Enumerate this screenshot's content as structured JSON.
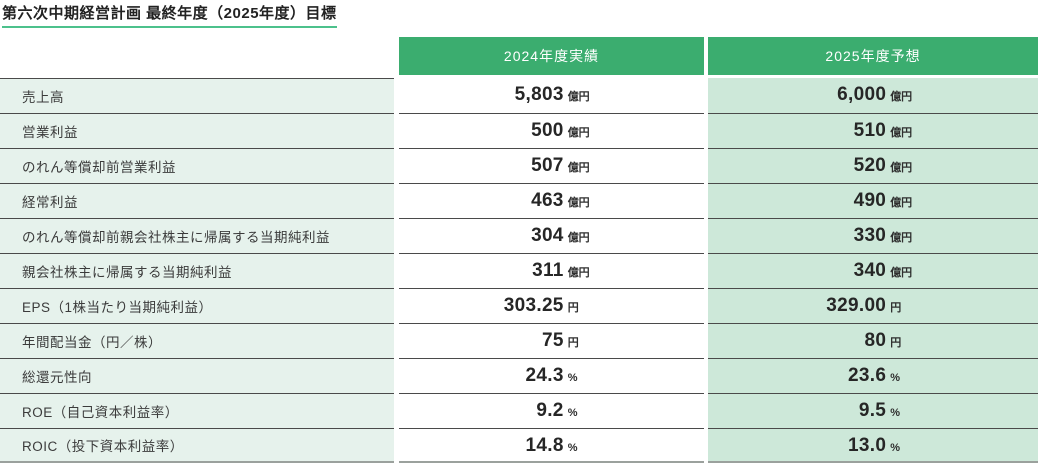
{
  "title": "第六次中期経営計画 最終年度（2025年度）目標",
  "table": {
    "columns": [
      "2024年度実績",
      "2025年度予想"
    ],
    "rows": [
      {
        "label": "売上高",
        "y2024": {
          "value": "5,803",
          "unit": "億円"
        },
        "y2025": {
          "value": "6,000",
          "unit": "億円"
        }
      },
      {
        "label": "営業利益",
        "y2024": {
          "value": "500",
          "unit": "億円"
        },
        "y2025": {
          "value": "510",
          "unit": "億円"
        }
      },
      {
        "label": "のれん等償却前営業利益",
        "y2024": {
          "value": "507",
          "unit": "億円"
        },
        "y2025": {
          "value": "520",
          "unit": "億円"
        }
      },
      {
        "label": "経常利益",
        "y2024": {
          "value": "463",
          "unit": "億円"
        },
        "y2025": {
          "value": "490",
          "unit": "億円"
        }
      },
      {
        "label": "のれん等償却前親会社株主に帰属する当期純利益",
        "y2024": {
          "value": "304",
          "unit": "億円"
        },
        "y2025": {
          "value": "330",
          "unit": "億円"
        }
      },
      {
        "label": "親会社株主に帰属する当期純利益",
        "y2024": {
          "value": "311",
          "unit": "億円"
        },
        "y2025": {
          "value": "340",
          "unit": "億円"
        }
      },
      {
        "label": "EPS（1株当たり当期純利益）",
        "y2024": {
          "value": "303.25",
          "unit": "円"
        },
        "y2025": {
          "value": "329.00",
          "unit": "円"
        }
      },
      {
        "label": "年間配当金（円／株）",
        "y2024": {
          "value": "75",
          "unit": "円"
        },
        "y2025": {
          "value": "80",
          "unit": "円"
        }
      },
      {
        "label": "総還元性向",
        "y2024": {
          "value": "24.3",
          "unit": "%"
        },
        "y2025": {
          "value": "23.6",
          "unit": "%"
        }
      },
      {
        "label": "ROE（自己資本利益率）",
        "y2024": {
          "value": "9.2",
          "unit": "%"
        },
        "y2025": {
          "value": "9.5",
          "unit": "%"
        }
      },
      {
        "label": "ROIC（投下資本利益率）",
        "y2024": {
          "value": "14.8",
          "unit": "%"
        },
        "y2025": {
          "value": "13.0",
          "unit": "%"
        }
      }
    ],
    "colors": {
      "header_bg": "#3bad6f",
      "header_text": "#ffffff",
      "label_column_bg": "#e6f2ec",
      "forecast_column_bg": "#cde8d9",
      "results_column_bg": "#ffffff",
      "row_separator": "#4a4a4a",
      "bottom_border": "#9ba19d",
      "title_underline": "#4cc18c"
    }
  }
}
